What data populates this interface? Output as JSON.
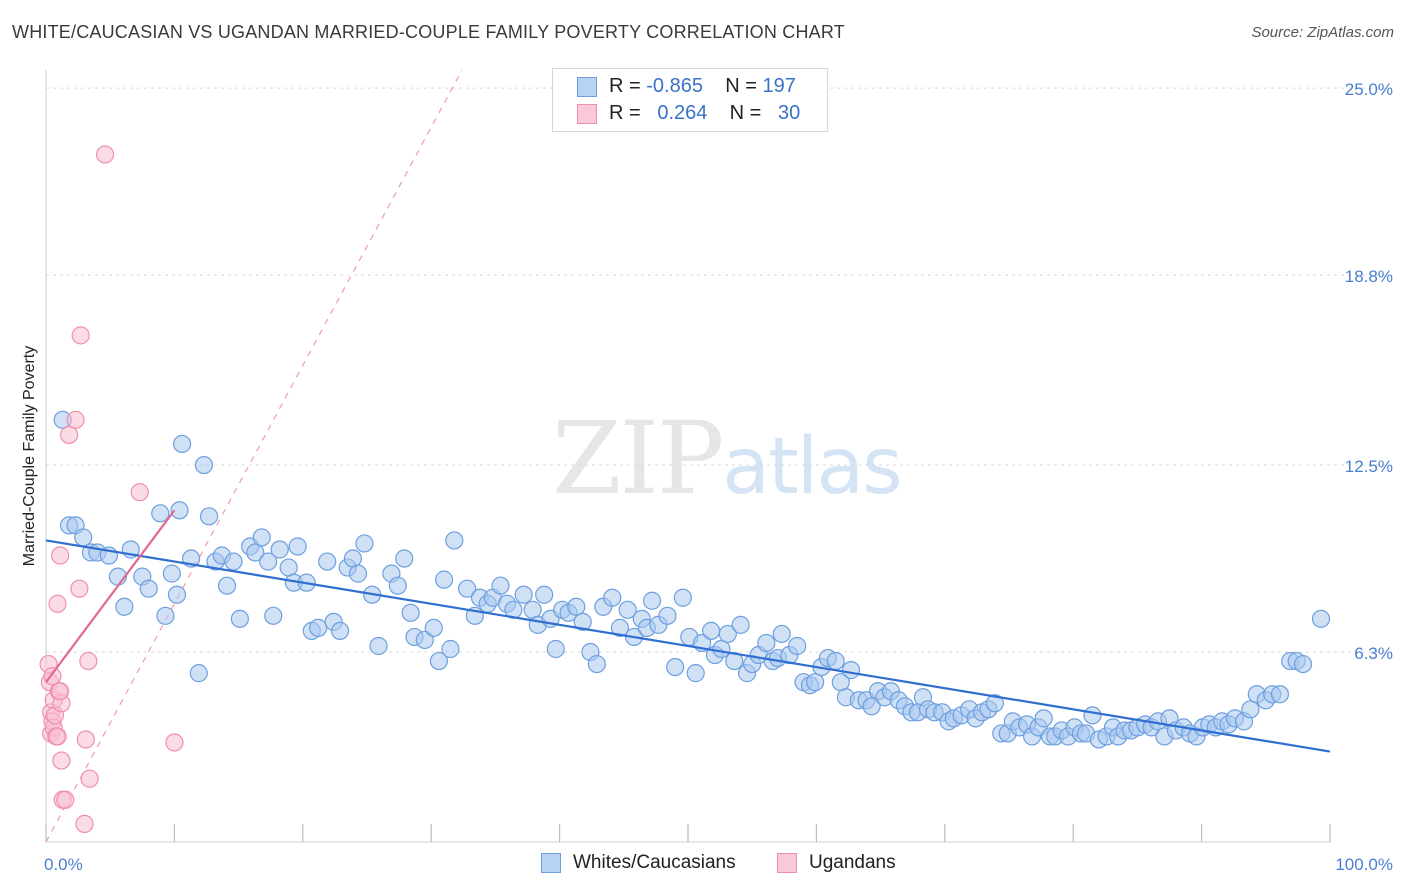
{
  "title": "WHITE/CAUCASIAN VS UGANDAN MARRIED-COUPLE FAMILY POVERTY CORRELATION CHART",
  "source": "Source: ZipAtlas.com",
  "watermark": {
    "zip": "ZIP",
    "atlas": "atlas"
  },
  "legend": {
    "rows": [
      {
        "r_label": "R =",
        "r_value": "-0.865",
        "n_label": "N =",
        "n_value": "197"
      },
      {
        "r_label": "R =",
        "r_value": "0.264",
        "n_label": "N =",
        "n_value": "30"
      }
    ]
  },
  "bottom_legend": {
    "whites": "Whites/Caucasians",
    "ugandans": "Ugandans"
  },
  "colors": {
    "blue_fill": "#a9c8ef",
    "blue_stroke": "#6d9fe0",
    "blue_line": "#2f6fcf",
    "pink_fill": "#f7bfd0",
    "pink_stroke": "#ef8fad",
    "pink_line": "#e06a92"
  },
  "chart_data": {
    "type": "scatter",
    "title": "WHITE/CAUCASIAN VS UGANDAN MARRIED-COUPLE FAMILY POVERTY CORRELATION CHART",
    "xlabel": "",
    "ylabel": "Married-Couple Family Poverty",
    "xlim": [
      0,
      100
    ],
    "ylim": [
      0,
      25.6
    ],
    "x_tick_labels": [
      "0.0%",
      "100.0%"
    ],
    "y_ticks": [
      6.3,
      12.5,
      18.8,
      25.0
    ],
    "y_tick_labels": [
      "6.3%",
      "12.5%",
      "18.8%",
      "25.0%"
    ],
    "series": [
      {
        "name": "Whites/Caucasians",
        "r": -0.865,
        "n": 197,
        "trend": {
          "x": [
            0,
            100
          ],
          "y": [
            10.0,
            3.0
          ]
        },
        "points": [
          [
            1.3,
            14.0
          ],
          [
            1.8,
            10.5
          ],
          [
            2.3,
            10.5
          ],
          [
            2.9,
            10.1
          ],
          [
            3.5,
            9.6
          ],
          [
            4.0,
            9.6
          ],
          [
            4.9,
            9.5
          ],
          [
            5.6,
            8.8
          ],
          [
            6.1,
            7.8
          ],
          [
            6.6,
            9.7
          ],
          [
            7.5,
            8.8
          ],
          [
            8.0,
            8.4
          ],
          [
            8.9,
            10.9
          ],
          [
            9.3,
            7.5
          ],
          [
            9.8,
            8.9
          ],
          [
            10.2,
            8.2
          ],
          [
            10.4,
            11.0
          ],
          [
            10.6,
            13.2
          ],
          [
            11.3,
            9.4
          ],
          [
            11.9,
            5.6
          ],
          [
            12.3,
            12.5
          ],
          [
            12.7,
            10.8
          ],
          [
            13.2,
            9.3
          ],
          [
            13.7,
            9.5
          ],
          [
            14.1,
            8.5
          ],
          [
            14.6,
            9.3
          ],
          [
            15.1,
            7.4
          ],
          [
            15.9,
            9.8
          ],
          [
            16.3,
            9.6
          ],
          [
            16.8,
            10.1
          ],
          [
            17.3,
            9.3
          ],
          [
            17.7,
            7.5
          ],
          [
            18.2,
            9.7
          ],
          [
            18.9,
            9.1
          ],
          [
            19.3,
            8.6
          ],
          [
            19.6,
            9.8
          ],
          [
            20.3,
            8.6
          ],
          [
            20.7,
            7.0
          ],
          [
            21.2,
            7.1
          ],
          [
            21.9,
            9.3
          ],
          [
            22.4,
            7.3
          ],
          [
            22.9,
            7.0
          ],
          [
            23.5,
            9.1
          ],
          [
            23.9,
            9.4
          ],
          [
            24.3,
            8.9
          ],
          [
            24.8,
            9.9
          ],
          [
            25.4,
            8.2
          ],
          [
            25.9,
            6.5
          ],
          [
            26.9,
            8.9
          ],
          [
            27.4,
            8.5
          ],
          [
            27.9,
            9.4
          ],
          [
            28.4,
            7.6
          ],
          [
            28.7,
            6.8
          ],
          [
            29.5,
            6.7
          ],
          [
            30.2,
            7.1
          ],
          [
            30.6,
            6.0
          ],
          [
            31.0,
            8.7
          ],
          [
            31.5,
            6.4
          ],
          [
            31.8,
            10.0
          ],
          [
            32.8,
            8.4
          ],
          [
            33.4,
            7.5
          ],
          [
            33.8,
            8.1
          ],
          [
            34.4,
            7.9
          ],
          [
            34.8,
            8.1
          ],
          [
            35.4,
            8.5
          ],
          [
            35.9,
            7.9
          ],
          [
            36.4,
            7.7
          ],
          [
            37.2,
            8.2
          ],
          [
            37.9,
            7.7
          ],
          [
            38.3,
            7.2
          ],
          [
            38.8,
            8.2
          ],
          [
            39.3,
            7.4
          ],
          [
            39.7,
            6.4
          ],
          [
            40.2,
            7.7
          ],
          [
            40.7,
            7.6
          ],
          [
            41.3,
            7.8
          ],
          [
            41.8,
            7.3
          ],
          [
            42.4,
            6.3
          ],
          [
            42.9,
            5.9
          ],
          [
            43.4,
            7.8
          ],
          [
            44.1,
            8.1
          ],
          [
            44.7,
            7.1
          ],
          [
            45.3,
            7.7
          ],
          [
            45.8,
            6.8
          ],
          [
            46.4,
            7.4
          ],
          [
            46.8,
            7.1
          ],
          [
            47.2,
            8.0
          ],
          [
            47.7,
            7.2
          ],
          [
            48.4,
            7.5
          ],
          [
            49.0,
            5.8
          ],
          [
            49.6,
            8.1
          ],
          [
            50.1,
            6.8
          ],
          [
            50.6,
            5.6
          ],
          [
            51.1,
            6.6
          ],
          [
            51.8,
            7.0
          ],
          [
            52.1,
            6.2
          ],
          [
            52.6,
            6.4
          ],
          [
            53.1,
            6.9
          ],
          [
            53.6,
            6.0
          ],
          [
            54.1,
            7.2
          ],
          [
            54.6,
            5.6
          ],
          [
            55.0,
            5.9
          ],
          [
            55.5,
            6.2
          ],
          [
            56.1,
            6.6
          ],
          [
            56.6,
            6.0
          ],
          [
            57.0,
            6.1
          ],
          [
            57.3,
            6.9
          ],
          [
            57.9,
            6.2
          ],
          [
            58.5,
            6.5
          ],
          [
            59.0,
            5.3
          ],
          [
            59.5,
            5.2
          ],
          [
            59.9,
            5.3
          ],
          [
            60.4,
            5.8
          ],
          [
            60.9,
            6.1
          ],
          [
            61.5,
            6.0
          ],
          [
            61.9,
            5.3
          ],
          [
            62.3,
            4.8
          ],
          [
            62.7,
            5.7
          ],
          [
            63.3,
            4.7
          ],
          [
            63.9,
            4.7
          ],
          [
            64.3,
            4.5
          ],
          [
            64.8,
            5.0
          ],
          [
            65.3,
            4.8
          ],
          [
            65.8,
            5.0
          ],
          [
            66.4,
            4.7
          ],
          [
            66.9,
            4.5
          ],
          [
            67.4,
            4.3
          ],
          [
            67.9,
            4.3
          ],
          [
            68.3,
            4.8
          ],
          [
            68.7,
            4.4
          ],
          [
            69.2,
            4.3
          ],
          [
            69.8,
            4.3
          ],
          [
            70.3,
            4.0
          ],
          [
            70.7,
            4.1
          ],
          [
            71.3,
            4.2
          ],
          [
            71.9,
            4.4
          ],
          [
            72.4,
            4.1
          ],
          [
            72.9,
            4.3
          ],
          [
            73.4,
            4.4
          ],
          [
            73.9,
            4.6
          ],
          [
            74.4,
            3.6
          ],
          [
            74.9,
            3.6
          ],
          [
            75.3,
            4.0
          ],
          [
            75.8,
            3.8
          ],
          [
            76.4,
            3.9
          ],
          [
            76.8,
            3.5
          ],
          [
            77.3,
            3.8
          ],
          [
            77.7,
            4.1
          ],
          [
            78.2,
            3.5
          ],
          [
            78.6,
            3.5
          ],
          [
            79.1,
            3.7
          ],
          [
            79.6,
            3.5
          ],
          [
            80.1,
            3.8
          ],
          [
            80.6,
            3.6
          ],
          [
            81.0,
            3.6
          ],
          [
            81.5,
            4.2
          ],
          [
            82.0,
            3.4
          ],
          [
            82.6,
            3.5
          ],
          [
            83.1,
            3.8
          ],
          [
            83.5,
            3.5
          ],
          [
            84.0,
            3.7
          ],
          [
            84.5,
            3.7
          ],
          [
            85.0,
            3.8
          ],
          [
            85.6,
            3.9
          ],
          [
            86.1,
            3.8
          ],
          [
            86.6,
            4.0
          ],
          [
            87.1,
            3.5
          ],
          [
            87.5,
            4.1
          ],
          [
            88.0,
            3.7
          ],
          [
            88.6,
            3.8
          ],
          [
            89.1,
            3.6
          ],
          [
            89.6,
            3.5
          ],
          [
            90.1,
            3.8
          ],
          [
            90.6,
            3.9
          ],
          [
            91.1,
            3.8
          ],
          [
            91.6,
            4.0
          ],
          [
            92.1,
            3.9
          ],
          [
            92.6,
            4.1
          ],
          [
            93.3,
            4.0
          ],
          [
            93.8,
            4.4
          ],
          [
            94.3,
            4.9
          ],
          [
            95.0,
            4.7
          ],
          [
            95.5,
            4.9
          ],
          [
            96.1,
            4.9
          ],
          [
            96.9,
            6.0
          ],
          [
            97.4,
            6.0
          ],
          [
            97.9,
            5.9
          ],
          [
            99.3,
            7.4
          ]
        ]
      },
      {
        "name": "Ugandans",
        "r": 0.264,
        "n": 30,
        "trend": {
          "x": [
            0,
            10
          ],
          "y": [
            5.3,
            11.0
          ]
        },
        "points": [
          [
            0.2,
            5.9
          ],
          [
            0.3,
            5.3
          ],
          [
            0.4,
            4.3
          ],
          [
            0.4,
            3.6
          ],
          [
            0.5,
            4.0
          ],
          [
            0.6,
            4.7
          ],
          [
            0.6,
            3.8
          ],
          [
            0.7,
            4.2
          ],
          [
            0.8,
            3.5
          ],
          [
            0.9,
            7.9
          ],
          [
            1.0,
            5.0
          ],
          [
            1.1,
            9.5
          ],
          [
            1.2,
            4.6
          ],
          [
            1.3,
            1.4
          ],
          [
            1.5,
            1.4
          ],
          [
            1.2,
            2.7
          ],
          [
            1.8,
            13.5
          ],
          [
            2.3,
            14.0
          ],
          [
            2.6,
            8.4
          ],
          [
            2.7,
            16.8
          ],
          [
            3.0,
            0.6
          ],
          [
            3.1,
            3.4
          ],
          [
            3.4,
            2.1
          ],
          [
            3.3,
            6.0
          ],
          [
            4.6,
            22.8
          ],
          [
            7.3,
            11.6
          ],
          [
            10.0,
            3.3
          ],
          [
            0.5,
            5.5
          ],
          [
            0.9,
            3.5
          ],
          [
            1.1,
            5.0
          ]
        ]
      }
    ]
  }
}
